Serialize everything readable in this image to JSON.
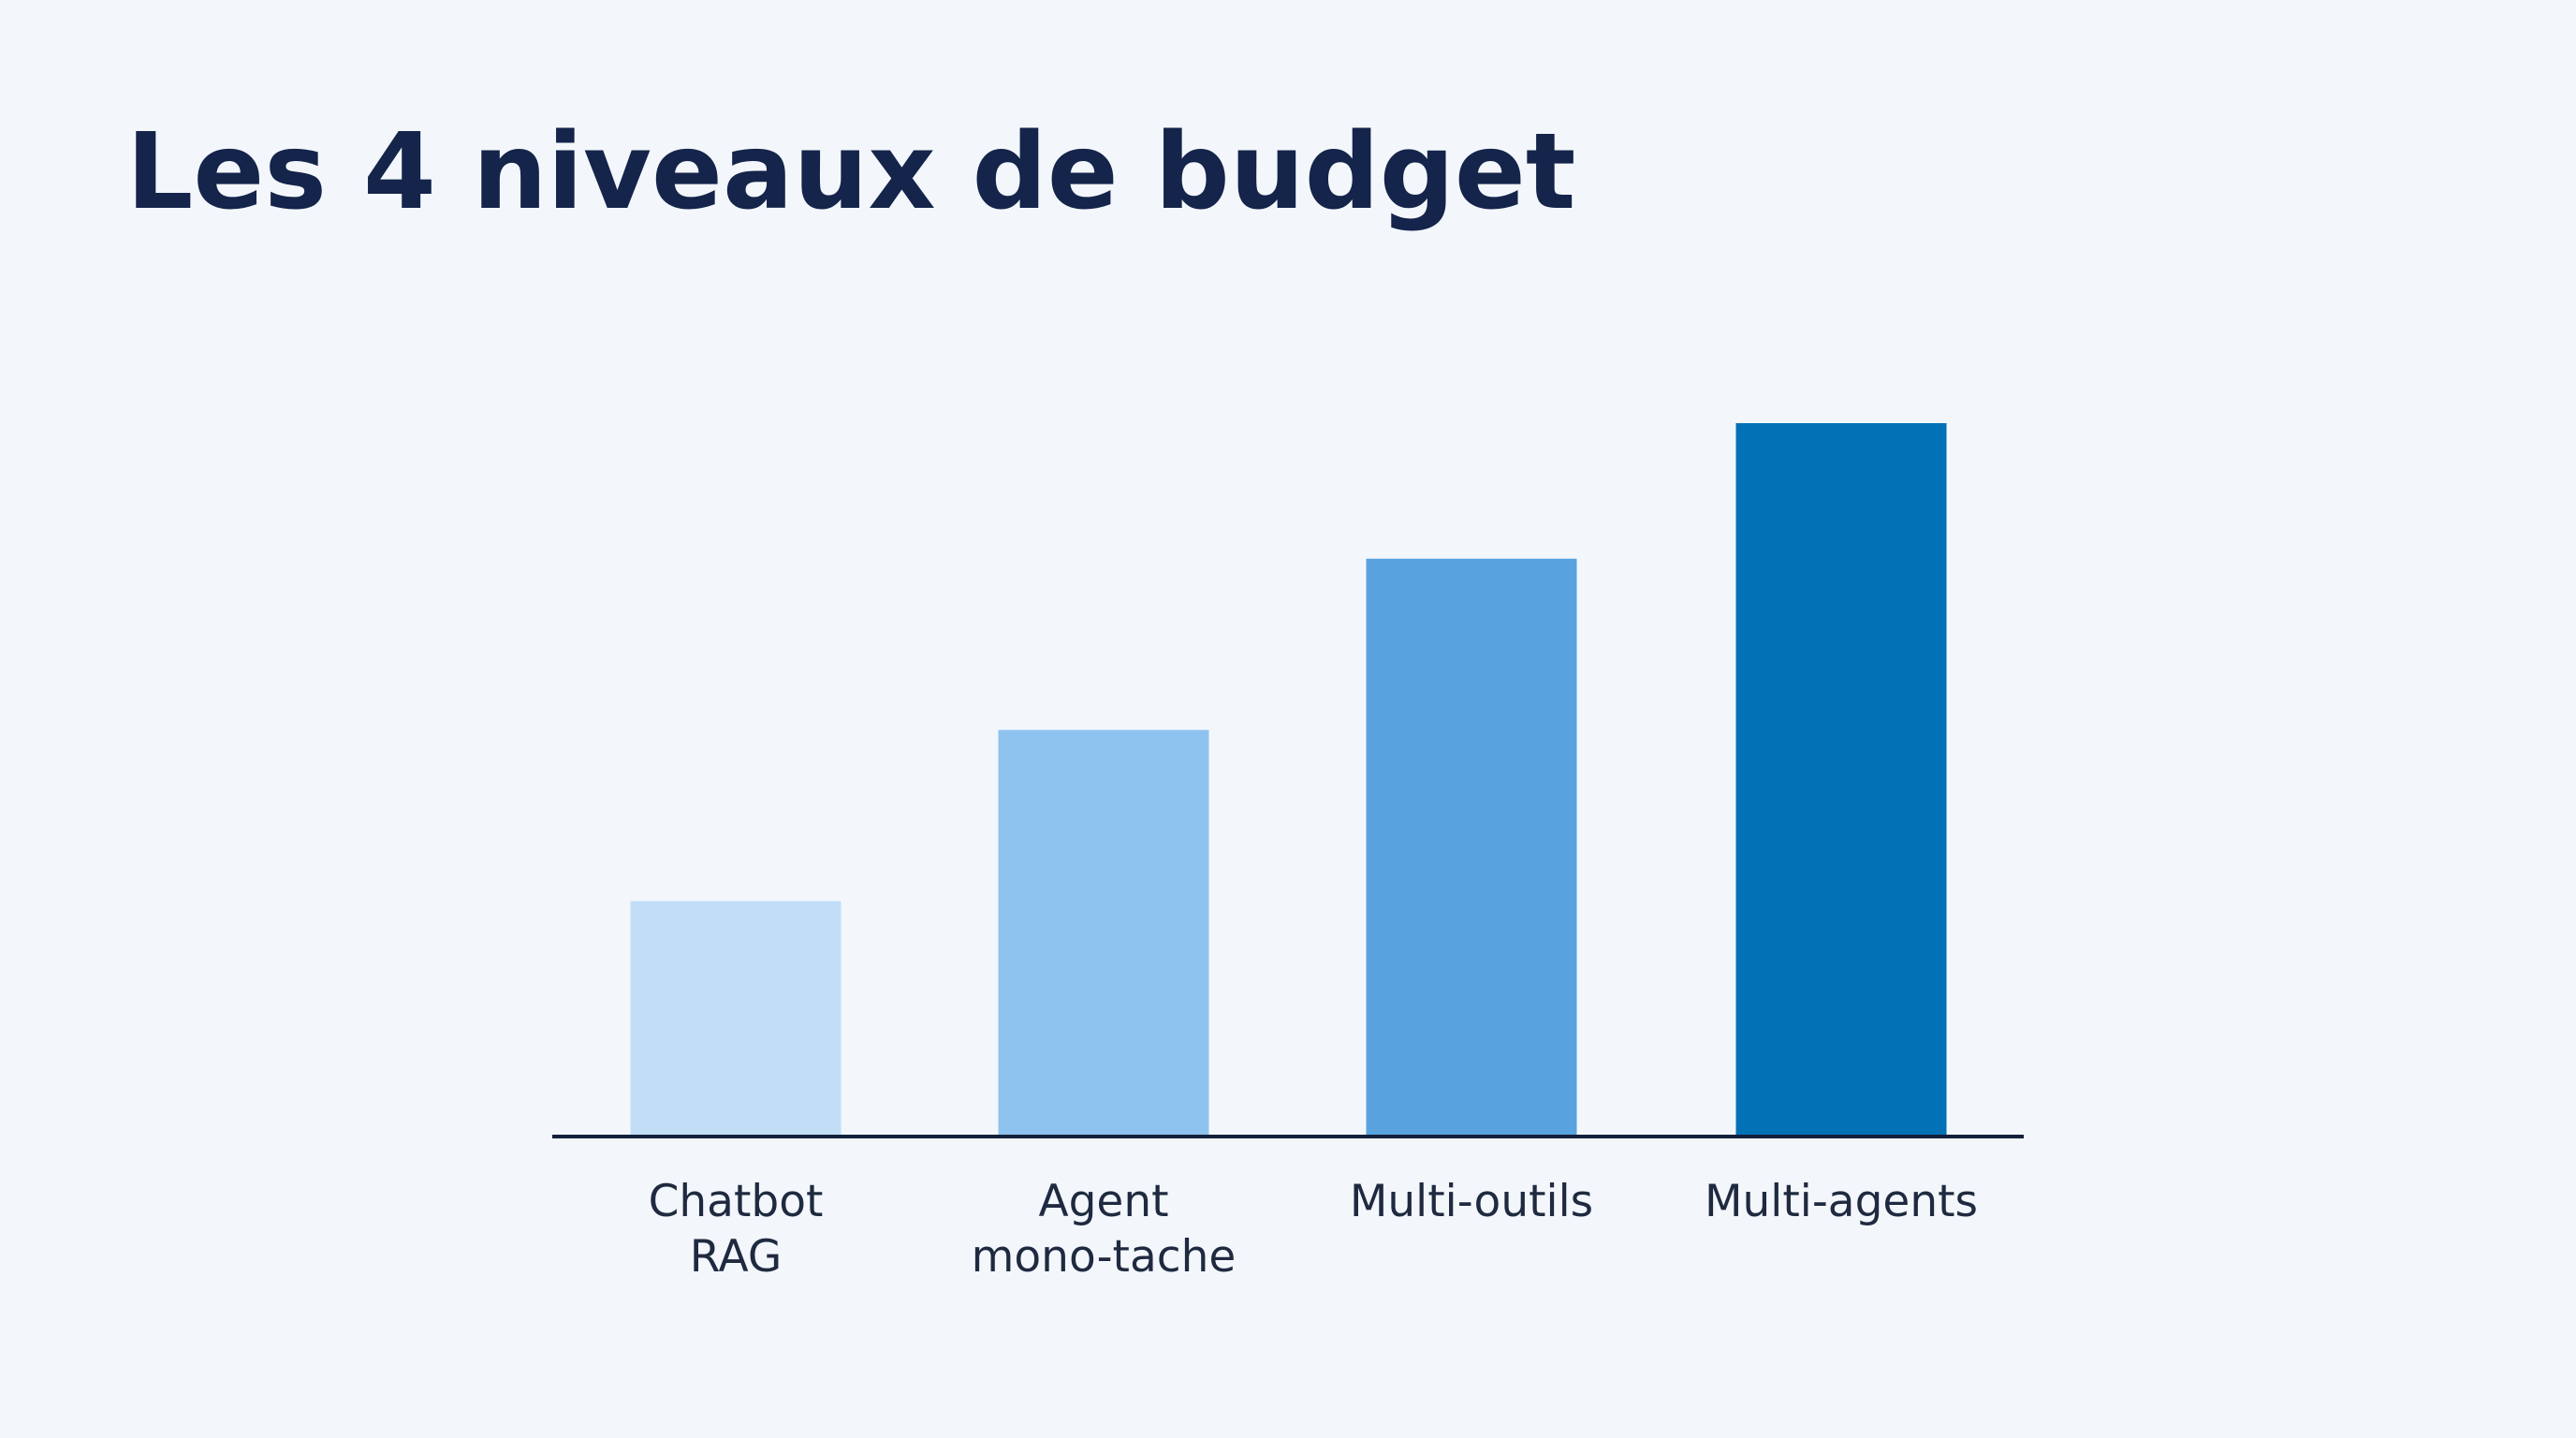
{
  "chart_data": {
    "type": "bar",
    "title": "Les 4 niveaux de budget",
    "categories": [
      [
        "Chatbot",
        "RAG"
      ],
      [
        "Agent",
        "mono-tache"
      ],
      [
        "Multi-outils"
      ],
      [
        "Multi-agents"
      ]
    ],
    "values": [
      33,
      57,
      81,
      100
    ],
    "colors": [
      "#c2def7",
      "#8fc3ef",
      "#58a3de",
      "#0271b5"
    ]
  }
}
